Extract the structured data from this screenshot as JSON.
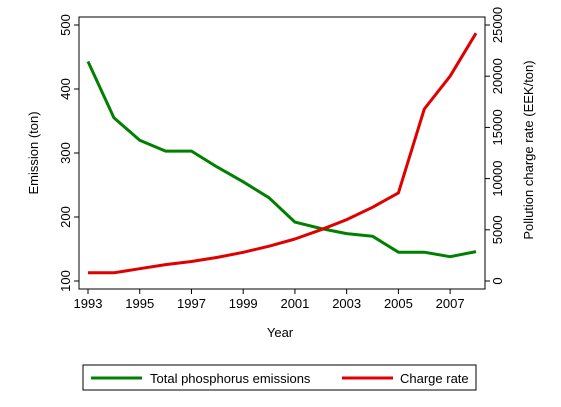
{
  "chart_data": {
    "type": "line",
    "title": "",
    "xlabel": "Year",
    "ylabel": "Emission (ton)",
    "y2label": "Pollution charge rate (EEK/ton)",
    "xlim": [
      1993,
      2008
    ],
    "ylim": [
      100,
      500
    ],
    "y2lim": [
      0,
      25000
    ],
    "x_ticks": [
      1993,
      1995,
      1997,
      1999,
      2001,
      2003,
      2005,
      2007
    ],
    "y_ticks": [
      100,
      200,
      300,
      400,
      500
    ],
    "y2_ticks": [
      0,
      5000,
      10000,
      15000,
      20000,
      25000
    ],
    "x": [
      1993,
      1994,
      1995,
      1996,
      1997,
      1998,
      1999,
      2000,
      2001,
      2002,
      2003,
      2004,
      2005,
      2006,
      2007,
      2008
    ],
    "grid": false,
    "legend_placement": "bottom",
    "series": [
      {
        "name": "Total phosphorus emissions",
        "axis": "left",
        "color": "#008000",
        "values": [
          443,
          355,
          320,
          303,
          303,
          278,
          255,
          230,
          192,
          182,
          174,
          170,
          145,
          145,
          138,
          146
        ]
      },
      {
        "name": "Charge rate",
        "axis": "right",
        "color": "#e00000",
        "values": [
          800,
          800,
          1200,
          1600,
          1900,
          2300,
          2800,
          3400,
          4100,
          5000,
          6000,
          7200,
          8600,
          16800,
          20000,
          24200
        ]
      }
    ]
  }
}
